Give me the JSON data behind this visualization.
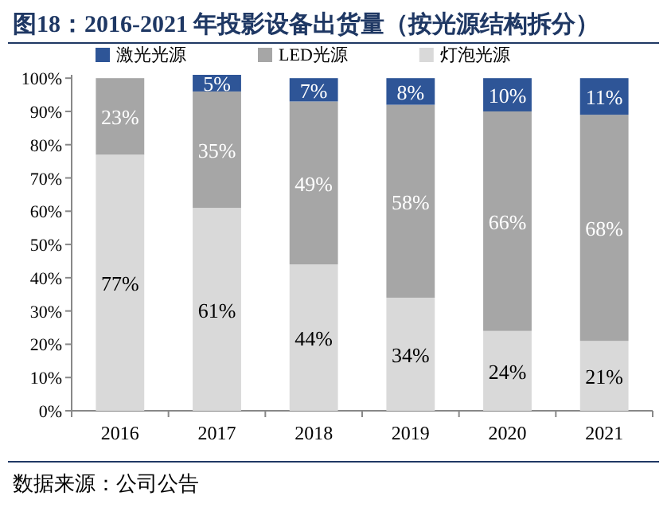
{
  "chart_data": {
    "type": "bar",
    "title": "图18：2016-2021 年投影设备出货量（按光源结构拆分）",
    "annotations": [
      "数据来源：公司公告"
    ],
    "categories": [
      "2016",
      "2017",
      "2018",
      "2019",
      "2020",
      "2021"
    ],
    "stacked": true,
    "legend": "top",
    "ylim": [
      0,
      101
    ],
    "yticks": [
      {
        "value": 0,
        "label": "0%"
      },
      {
        "value": 10,
        "label": "10%"
      },
      {
        "value": 20,
        "label": "20%"
      },
      {
        "value": 30,
        "label": "30%"
      },
      {
        "value": 40,
        "label": "40%"
      },
      {
        "value": 50,
        "label": "50%"
      },
      {
        "value": 60,
        "label": "60%"
      },
      {
        "value": 70,
        "label": "70%"
      },
      {
        "value": 80,
        "label": "80%"
      },
      {
        "value": 90,
        "label": "90%"
      },
      {
        "value": 100,
        "label": "100%"
      }
    ],
    "series": [
      {
        "name": "灯泡光源",
        "color": "#d9d9d9",
        "values": [
          77,
          61,
          44,
          34,
          24,
          21
        ],
        "value_labels": [
          "77%",
          "61%",
          "44%",
          "34%",
          "24%",
          "21%"
        ]
      },
      {
        "name": "LED光源",
        "color": "#a6a6a6",
        "values": [
          23,
          35,
          49,
          58,
          66,
          68
        ],
        "value_labels": [
          "23%",
          "35%",
          "49%",
          "58%",
          "66%",
          "68%"
        ]
      },
      {
        "name": "激光光源",
        "color": "#2e5597",
        "values": [
          null,
          5,
          7,
          8,
          10,
          11
        ],
        "value_labels": [
          null,
          "5%",
          "7%",
          "8%",
          "10%",
          "11%"
        ]
      }
    ]
  }
}
